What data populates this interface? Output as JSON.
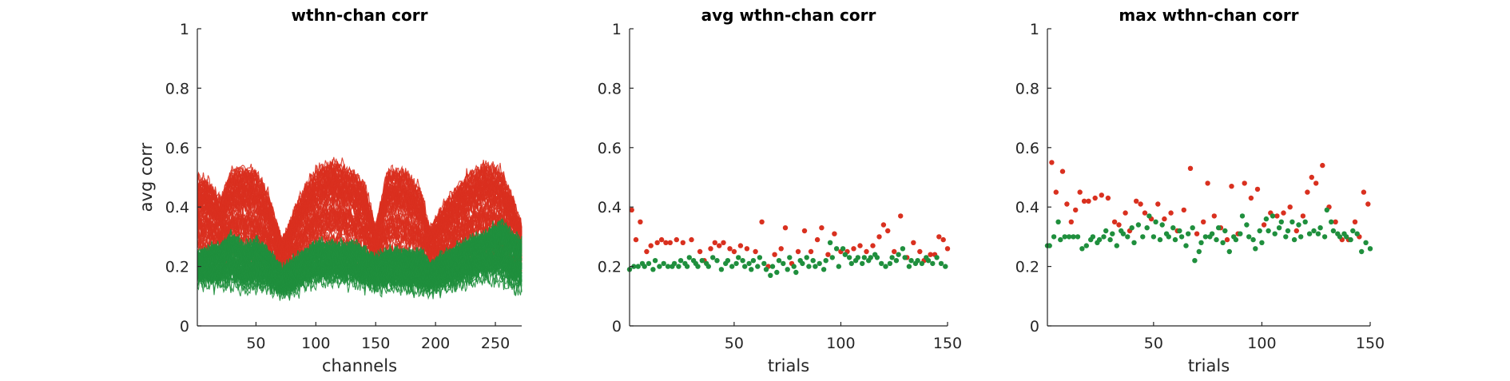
{
  "colors": {
    "red": "#d9301f",
    "green": "#1f8f3d",
    "axis": "#262626"
  },
  "chart_data": [
    {
      "type": "line",
      "title": "wthn-chan corr",
      "xlabel": "channels",
      "ylabel": "avg corr",
      "xlim": [
        1,
        272
      ],
      "ylim": [
        0,
        1
      ],
      "xticks": [
        50,
        100,
        150,
        200,
        250
      ],
      "yticks": [
        0,
        0.2,
        0.4,
        0.6,
        0.8,
        1
      ],
      "ytick_labels": [
        "0",
        "0.2",
        "0.4",
        "0.6",
        "0.8",
        "1"
      ],
      "grid": false,
      "series": [
        {
          "color": "red",
          "n_traces": 75,
          "baseline": [
            [
              1,
              0.22
            ],
            [
              20,
              0.2
            ],
            [
              40,
              0.18
            ],
            [
              60,
              0.17
            ],
            [
              75,
              0.15
            ],
            [
              90,
              0.19
            ],
            [
              110,
              0.23
            ],
            [
              130,
              0.21
            ],
            [
              150,
              0.18
            ],
            [
              170,
              0.18
            ],
            [
              190,
              0.17
            ],
            [
              210,
              0.17
            ],
            [
              225,
              0.2
            ],
            [
              240,
              0.22
            ],
            [
              255,
              0.21
            ],
            [
              265,
              0.17
            ],
            [
              272,
              0.17
            ]
          ],
          "envelope": [
            [
              1,
              0.5
            ],
            [
              10,
              0.48
            ],
            [
              20,
              0.42
            ],
            [
              30,
              0.52
            ],
            [
              40,
              0.53
            ],
            [
              50,
              0.52
            ],
            [
              60,
              0.44
            ],
            [
              72,
              0.28
            ],
            [
              85,
              0.42
            ],
            [
              100,
              0.52
            ],
            [
              115,
              0.55
            ],
            [
              130,
              0.52
            ],
            [
              140,
              0.48
            ],
            [
              150,
              0.33
            ],
            [
              160,
              0.52
            ],
            [
              175,
              0.52
            ],
            [
              188,
              0.45
            ],
            [
              195,
              0.32
            ],
            [
              210,
              0.42
            ],
            [
              225,
              0.5
            ],
            [
              240,
              0.54
            ],
            [
              255,
              0.52
            ],
            [
              265,
              0.42
            ],
            [
              272,
              0.33
            ]
          ]
        },
        {
          "color": "green",
          "n_traces": 75,
          "baseline": [
            [
              1,
              0.14
            ],
            [
              20,
              0.13
            ],
            [
              40,
              0.12
            ],
            [
              60,
              0.12
            ],
            [
              75,
              0.1
            ],
            [
              90,
              0.13
            ],
            [
              110,
              0.15
            ],
            [
              130,
              0.14
            ],
            [
              150,
              0.12
            ],
            [
              170,
              0.12
            ],
            [
              190,
              0.11
            ],
            [
              210,
              0.12
            ],
            [
              225,
              0.14
            ],
            [
              240,
              0.15
            ],
            [
              255,
              0.14
            ],
            [
              265,
              0.11
            ],
            [
              272,
              0.11
            ]
          ],
          "envelope": [
            [
              1,
              0.24
            ],
            [
              20,
              0.26
            ],
            [
              30,
              0.3
            ],
            [
              40,
              0.26
            ],
            [
              50,
              0.28
            ],
            [
              60,
              0.24
            ],
            [
              72,
              0.18
            ],
            [
              85,
              0.22
            ],
            [
              100,
              0.27
            ],
            [
              115,
              0.26
            ],
            [
              130,
              0.27
            ],
            [
              140,
              0.25
            ],
            [
              150,
              0.22
            ],
            [
              160,
              0.24
            ],
            [
              175,
              0.24
            ],
            [
              188,
              0.24
            ],
            [
              195,
              0.2
            ],
            [
              210,
              0.24
            ],
            [
              225,
              0.27
            ],
            [
              240,
              0.3
            ],
            [
              255,
              0.34
            ],
            [
              265,
              0.3
            ],
            [
              272,
              0.28
            ]
          ]
        }
      ]
    },
    {
      "type": "scatter",
      "title": "avg wthn-chan corr",
      "xlabel": "trials",
      "ylabel": "",
      "xlim": [
        1,
        150
      ],
      "ylim": [
        0,
        1
      ],
      "xticks": [
        50,
        100,
        150
      ],
      "yticks": [
        0,
        0.2,
        0.4,
        0.6,
        0.8,
        1
      ],
      "ytick_labels": [
        "0",
        "0.2",
        "0.4",
        "0.6",
        "0.8",
        "1"
      ],
      "grid": false,
      "series": [
        {
          "color": "red",
          "x": [
            2,
            4,
            6,
            9,
            11,
            14,
            16,
            18,
            20,
            23,
            26,
            30,
            34,
            36,
            39,
            41,
            43,
            45,
            48,
            50,
            53,
            56,
            60,
            63,
            66,
            69,
            72,
            74,
            77,
            80,
            83,
            86,
            89,
            91,
            94,
            97,
            100,
            103,
            106,
            109,
            112,
            115,
            118,
            120,
            122,
            125,
            128,
            131,
            134,
            137,
            139,
            142,
            144,
            146,
            148,
            150
          ],
          "y": [
            0.39,
            0.29,
            0.35,
            0.25,
            0.27,
            0.28,
            0.29,
            0.28,
            0.28,
            0.29,
            0.28,
            0.29,
            0.25,
            0.22,
            0.26,
            0.28,
            0.27,
            0.28,
            0.26,
            0.25,
            0.27,
            0.26,
            0.25,
            0.35,
            0.2,
            0.24,
            0.26,
            0.33,
            0.21,
            0.25,
            0.32,
            0.25,
            0.29,
            0.33,
            0.24,
            0.31,
            0.25,
            0.25,
            0.26,
            0.27,
            0.25,
            0.27,
            0.3,
            0.34,
            0.32,
            0.25,
            0.37,
            0.23,
            0.28,
            0.25,
            0.22,
            0.24,
            0.24,
            0.3,
            0.29,
            0.26
          ]
        },
        {
          "color": "green",
          "x": [
            1,
            3,
            5,
            7,
            8,
            10,
            12,
            13,
            15,
            17,
            19,
            21,
            22,
            24,
            25,
            27,
            28,
            29,
            31,
            32,
            33,
            35,
            37,
            38,
            40,
            42,
            44,
            46,
            47,
            49,
            51,
            52,
            54,
            55,
            57,
            58,
            59,
            61,
            62,
            64,
            65,
            67,
            68,
            70,
            71,
            73,
            75,
            76,
            78,
            79,
            81,
            82,
            84,
            85,
            87,
            88,
            90,
            92,
            93,
            95,
            96,
            98,
            99,
            101,
            102,
            104,
            105,
            107,
            108,
            110,
            111,
            113,
            114,
            116,
            117,
            119,
            121,
            123,
            124,
            126,
            127,
            129,
            130,
            132,
            133,
            135,
            136,
            138,
            140,
            141,
            143,
            145,
            147,
            149
          ],
          "y": [
            0.19,
            0.2,
            0.2,
            0.21,
            0.2,
            0.21,
            0.19,
            0.22,
            0.2,
            0.21,
            0.2,
            0.2,
            0.21,
            0.2,
            0.22,
            0.21,
            0.2,
            0.23,
            0.22,
            0.21,
            0.2,
            0.22,
            0.21,
            0.2,
            0.23,
            0.22,
            0.19,
            0.21,
            0.22,
            0.2,
            0.21,
            0.23,
            0.22,
            0.2,
            0.21,
            0.19,
            0.22,
            0.2,
            0.23,
            0.21,
            0.19,
            0.17,
            0.2,
            0.18,
            0.22,
            0.21,
            0.19,
            0.23,
            0.2,
            0.18,
            0.22,
            0.21,
            0.23,
            0.2,
            0.22,
            0.2,
            0.21,
            0.19,
            0.22,
            0.28,
            0.23,
            0.26,
            0.2,
            0.26,
            0.24,
            0.23,
            0.21,
            0.22,
            0.23,
            0.21,
            0.23,
            0.22,
            0.23,
            0.24,
            0.23,
            0.21,
            0.2,
            0.21,
            0.23,
            0.22,
            0.24,
            0.26,
            0.23,
            0.2,
            0.22,
            0.21,
            0.22,
            0.21,
            0.23,
            0.22,
            0.21,
            0.23,
            0.21,
            0.2
          ]
        }
      ]
    },
    {
      "type": "scatter",
      "title": "max wthn-chan corr",
      "xlabel": "trials",
      "ylabel": "",
      "xlim": [
        1,
        150
      ],
      "ylim": [
        0,
        1
      ],
      "xticks": [
        50,
        100,
        150
      ],
      "yticks": [
        0,
        0.2,
        0.4,
        0.6,
        0.8,
        1
      ],
      "ytick_labels": [
        "0",
        "0.2",
        "0.4",
        "0.6",
        "0.8",
        "1"
      ],
      "grid": false,
      "series": [
        {
          "color": "red",
          "x": [
            3,
            5,
            8,
            10,
            12,
            14,
            16,
            18,
            20,
            23,
            26,
            29,
            32,
            34,
            37,
            39,
            42,
            44,
            46,
            49,
            52,
            55,
            58,
            61,
            64,
            67,
            70,
            73,
            75,
            78,
            81,
            84,
            86,
            89,
            92,
            95,
            98,
            101,
            104,
            107,
            110,
            113,
            116,
            119,
            121,
            123,
            125,
            128,
            131,
            134,
            137,
            140,
            143,
            145,
            147,
            149
          ],
          "y": [
            0.55,
            0.45,
            0.52,
            0.41,
            0.35,
            0.39,
            0.45,
            0.42,
            0.42,
            0.43,
            0.44,
            0.43,
            0.35,
            0.34,
            0.38,
            0.32,
            0.42,
            0.41,
            0.38,
            0.36,
            0.41,
            0.36,
            0.38,
            0.32,
            0.39,
            0.53,
            0.31,
            0.35,
            0.48,
            0.37,
            0.33,
            0.29,
            0.47,
            0.31,
            0.48,
            0.43,
            0.46,
            0.34,
            0.38,
            0.37,
            0.38,
            0.4,
            0.32,
            0.37,
            0.45,
            0.5,
            0.48,
            0.54,
            0.4,
            0.35,
            0.29,
            0.29,
            0.35,
            0.3,
            0.45,
            0.41
          ]
        },
        {
          "color": "green",
          "x": [
            1,
            2,
            4,
            6,
            7,
            9,
            11,
            13,
            15,
            17,
            19,
            21,
            22,
            24,
            25,
            27,
            28,
            30,
            31,
            33,
            35,
            36,
            38,
            40,
            41,
            43,
            45,
            47,
            48,
            50,
            51,
            53,
            54,
            56,
            57,
            59,
            60,
            62,
            63,
            65,
            66,
            68,
            69,
            71,
            72,
            74,
            76,
            77,
            79,
            80,
            82,
            83,
            85,
            87,
            88,
            90,
            91,
            93,
            94,
            96,
            97,
            99,
            100,
            102,
            103,
            105,
            106,
            108,
            109,
            111,
            112,
            114,
            115,
            117,
            118,
            120,
            122,
            124,
            126,
            127,
            129,
            130,
            132,
            133,
            135,
            136,
            138,
            139,
            141,
            142,
            144,
            146,
            148,
            150
          ],
          "y": [
            0.27,
            0.27,
            0.3,
            0.35,
            0.29,
            0.3,
            0.3,
            0.3,
            0.3,
            0.26,
            0.27,
            0.29,
            0.3,
            0.28,
            0.29,
            0.3,
            0.32,
            0.29,
            0.31,
            0.27,
            0.32,
            0.31,
            0.3,
            0.33,
            0.28,
            0.34,
            0.3,
            0.33,
            0.37,
            0.3,
            0.35,
            0.29,
            0.34,
            0.31,
            0.3,
            0.33,
            0.29,
            0.32,
            0.3,
            0.27,
            0.31,
            0.33,
            0.22,
            0.25,
            0.28,
            0.3,
            0.3,
            0.31,
            0.29,
            0.33,
            0.28,
            0.32,
            0.25,
            0.3,
            0.29,
            0.31,
            0.37,
            0.34,
            0.3,
            0.29,
            0.26,
            0.32,
            0.28,
            0.36,
            0.32,
            0.37,
            0.31,
            0.33,
            0.35,
            0.3,
            0.32,
            0.35,
            0.29,
            0.34,
            0.3,
            0.35,
            0.31,
            0.32,
            0.31,
            0.33,
            0.3,
            0.39,
            0.35,
            0.32,
            0.31,
            0.3,
            0.31,
            0.3,
            0.29,
            0.32,
            0.31,
            0.25,
            0.28,
            0.26
          ]
        }
      ]
    }
  ]
}
